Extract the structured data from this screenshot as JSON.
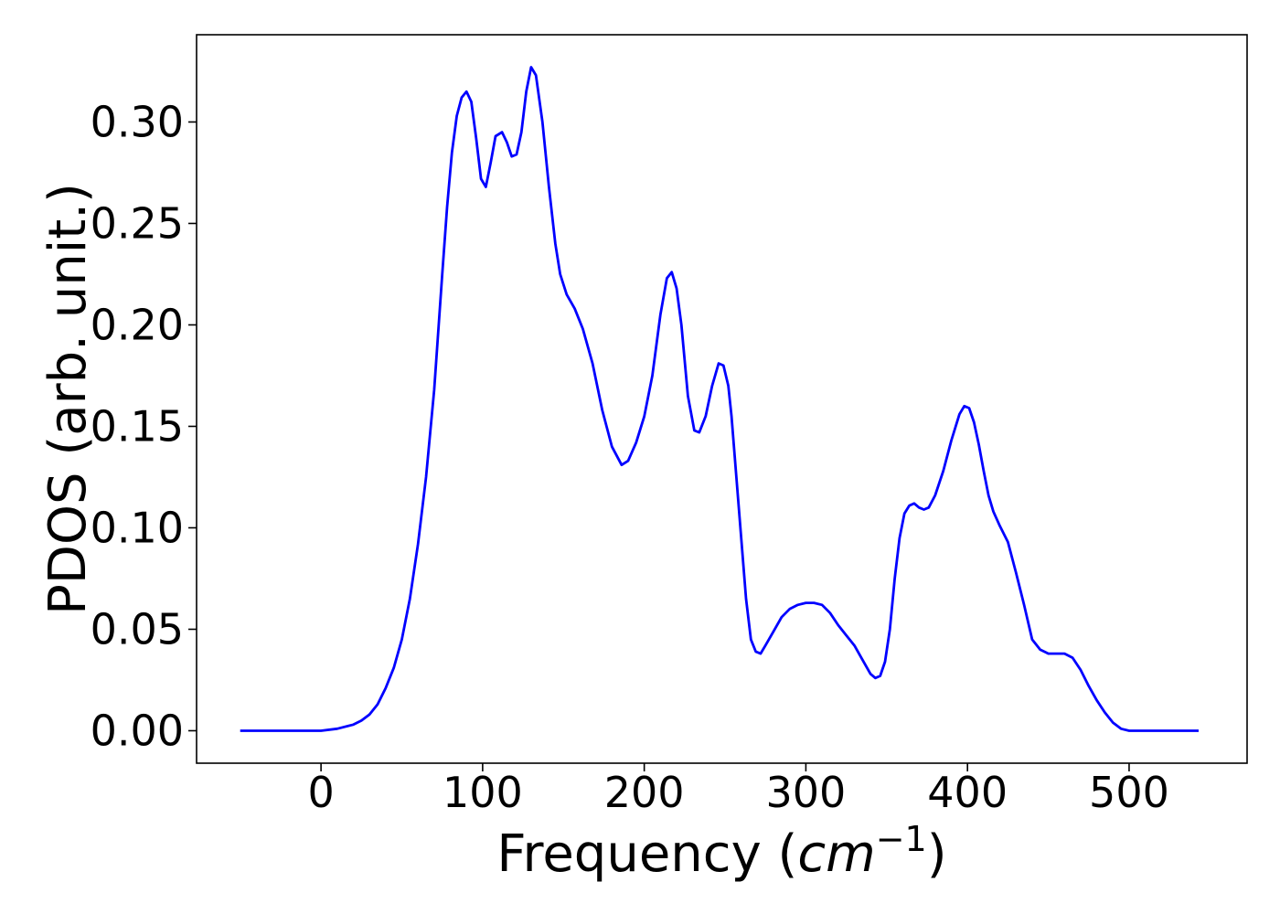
{
  "chart_data": {
    "type": "line",
    "title": "",
    "xlabel_prefix": "Frequency (",
    "xlabel_unit_base": "cm",
    "xlabel_unit_exp": "−1",
    "xlabel_suffix": ")",
    "ylabel": "PDOS (arb. unit.)",
    "xlim": [
      -77,
      573
    ],
    "ylim": [
      -0.016,
      0.343
    ],
    "xticks": [
      0,
      100,
      200,
      300,
      400,
      500
    ],
    "xtick_labels": [
      "0",
      "100",
      "200",
      "300",
      "400",
      "500"
    ],
    "yticks": [
      0.0,
      0.05,
      0.1,
      0.15,
      0.2,
      0.25,
      0.3
    ],
    "ytick_labels": [
      "0.00",
      "0.05",
      "0.10",
      "0.15",
      "0.20",
      "0.25",
      "0.30"
    ],
    "grid": false,
    "legend": null,
    "series": [
      {
        "color": "#0000ff",
        "x": [
          -50,
          -25,
          0,
          10,
          20,
          25,
          30,
          35,
          40,
          45,
          50,
          55,
          60,
          65,
          70,
          75,
          78,
          81,
          84,
          87,
          90,
          93,
          96,
          99,
          102,
          105,
          108,
          112,
          115,
          118,
          121,
          124,
          127,
          130,
          133,
          137,
          141,
          145,
          148,
          152,
          157,
          162,
          168,
          174,
          180,
          186,
          190,
          195,
          200,
          205,
          210,
          214,
          217,
          220,
          223,
          227,
          231,
          234,
          238,
          242,
          246,
          249,
          252,
          254,
          257,
          260,
          263,
          266,
          269,
          272,
          275,
          280,
          285,
          290,
          295,
          300,
          305,
          310,
          315,
          320,
          325,
          330,
          335,
          340,
          343,
          346,
          349,
          352,
          355,
          358,
          361,
          364,
          367,
          370,
          373,
          376,
          380,
          385,
          390,
          395,
          398,
          401,
          404,
          407,
          410,
          413,
          416,
          420,
          425,
          430,
          435,
          440,
          445,
          450,
          455,
          460,
          465,
          470,
          475,
          480,
          485,
          490,
          495,
          500,
          505,
          510,
          520,
          530,
          543
        ],
        "y": [
          0.0,
          0.0,
          0.0,
          0.001,
          0.003,
          0.005,
          0.008,
          0.013,
          0.021,
          0.031,
          0.045,
          0.065,
          0.092,
          0.125,
          0.168,
          0.225,
          0.258,
          0.285,
          0.303,
          0.312,
          0.315,
          0.31,
          0.292,
          0.272,
          0.268,
          0.28,
          0.293,
          0.295,
          0.29,
          0.283,
          0.284,
          0.295,
          0.315,
          0.327,
          0.323,
          0.3,
          0.268,
          0.24,
          0.225,
          0.215,
          0.208,
          0.198,
          0.181,
          0.158,
          0.14,
          0.131,
          0.133,
          0.142,
          0.155,
          0.175,
          0.205,
          0.223,
          0.226,
          0.218,
          0.2,
          0.165,
          0.148,
          0.147,
          0.155,
          0.17,
          0.181,
          0.18,
          0.17,
          0.155,
          0.125,
          0.095,
          0.065,
          0.045,
          0.039,
          0.038,
          0.042,
          0.049,
          0.056,
          0.06,
          0.062,
          0.063,
          0.063,
          0.062,
          0.058,
          0.052,
          0.047,
          0.042,
          0.035,
          0.028,
          0.026,
          0.027,
          0.034,
          0.05,
          0.075,
          0.095,
          0.107,
          0.111,
          0.112,
          0.11,
          0.109,
          0.11,
          0.116,
          0.128,
          0.143,
          0.156,
          0.16,
          0.159,
          0.152,
          0.141,
          0.128,
          0.116,
          0.108,
          0.101,
          0.093,
          0.078,
          0.062,
          0.045,
          0.04,
          0.038,
          0.038,
          0.038,
          0.036,
          0.03,
          0.022,
          0.015,
          0.009,
          0.004,
          0.001,
          0.0,
          0.0,
          0.0,
          0.0,
          0.0,
          0.0
        ]
      }
    ]
  }
}
